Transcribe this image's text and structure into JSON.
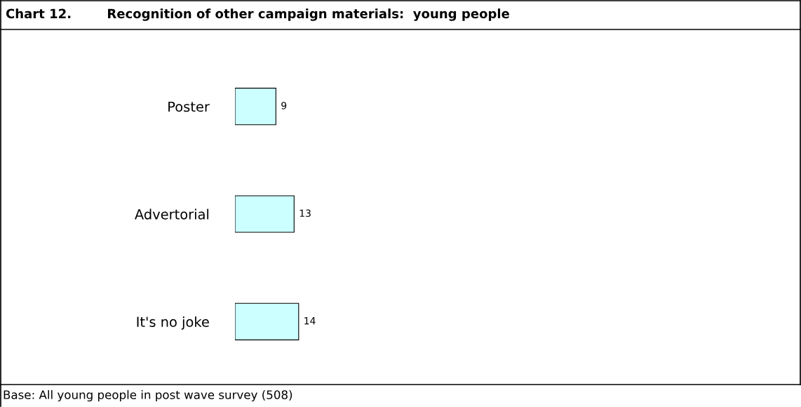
{
  "chart_data": {
    "type": "bar",
    "orientation": "horizontal",
    "title": "Chart 12.        Recognition of other campaign materials:  young people",
    "categories": [
      "Poster",
      "Advertorial",
      "It's no joke"
    ],
    "values": [
      9,
      13,
      14
    ],
    "color": "#ccffff",
    "data_labels": true,
    "annotations": [
      "Base: All young people in post wave survey (508)"
    ]
  }
}
